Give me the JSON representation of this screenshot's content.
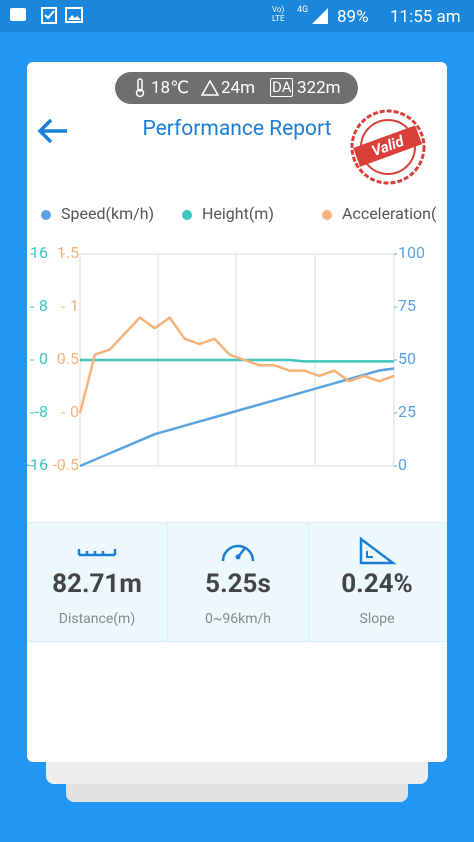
{
  "status_bar": {
    "volte": "Vo) LTE",
    "network": "4G",
    "battery": "89%",
    "time": "11:55 am"
  },
  "conditions": {
    "temperature": "18℃",
    "altitude": "24m",
    "da_badge": "DA",
    "density_altitude": "322m"
  },
  "header": {
    "title": "Performance Report",
    "stamp": "Valid"
  },
  "chart_data": {
    "type": "line",
    "series": [
      {
        "name": "Speed(km/h)",
        "color": "#5ba3e0",
        "axis": "y",
        "values": [
          0,
          3,
          6,
          9,
          12,
          15,
          17,
          19,
          21,
          23,
          25,
          27,
          29,
          31,
          33,
          35,
          37,
          39,
          41,
          43,
          45,
          46
        ]
      },
      {
        "name": "Height(m)",
        "color": "#3cc6bd",
        "axis": "y2",
        "values": [
          0,
          0,
          0,
          0,
          0,
          0,
          0,
          0,
          0,
          0,
          0,
          0,
          0,
          0,
          0,
          -0.2,
          -0.2,
          -0.2,
          -0.2,
          -0.2,
          -0.2,
          -0.2
        ]
      },
      {
        "name": "Acceleration(",
        "color": "#f5b27a",
        "axis": "y3",
        "values": [
          0.0,
          0.55,
          0.6,
          0.75,
          0.9,
          0.8,
          0.9,
          0.7,
          0.65,
          0.7,
          0.55,
          0.5,
          0.45,
          0.45,
          0.4,
          0.4,
          0.35,
          0.4,
          0.3,
          0.35,
          0.3,
          0.35
        ]
      }
    ],
    "ylim": [
      0,
      100
    ],
    "yticks": [
      0,
      25,
      50,
      75,
      100
    ],
    "y2lim": [
      -16,
      16
    ],
    "y2ticks": [
      -16,
      -8,
      0,
      8,
      16
    ],
    "y3lim": [
      -0.5,
      1.5
    ],
    "y3ticks": [
      -0.5,
      0,
      0.5,
      1,
      1.5
    ]
  },
  "stats": [
    {
      "value": "82.71m",
      "label": "Distance(m)"
    },
    {
      "value": "5.25s",
      "label": "0~96km/h"
    },
    {
      "value": "0.24%",
      "label": "Slope"
    }
  ]
}
